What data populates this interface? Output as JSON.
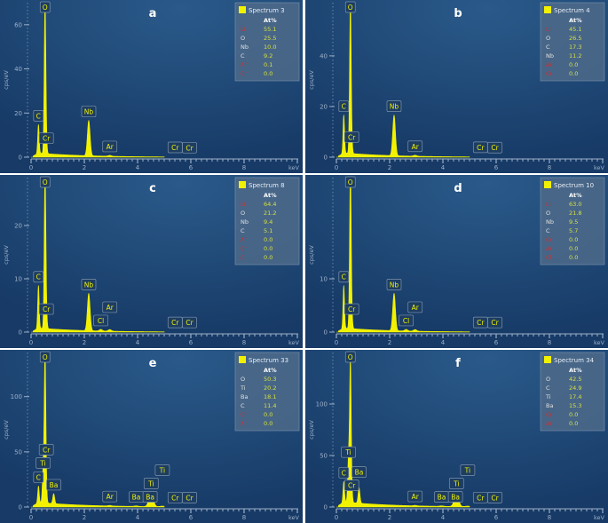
{
  "colors": {
    "spectrum": "#f2f200",
    "background_center": "#2a5a8a",
    "background_edge": "#173a66",
    "legend_value": "#d6e040",
    "legend_element": "#e0e0e0",
    "legend_trace": "#d03030",
    "axis": "#9db0c8"
  },
  "chart_data": [
    {
      "type": "line",
      "panel_letter": "a",
      "ylabel": "cps/eV",
      "xlabel": "keV",
      "xlim": [
        0,
        10
      ],
      "ylim": [
        0,
        70
      ],
      "yticks": [
        0,
        20,
        40,
        60
      ],
      "xticks": [
        0,
        2,
        4,
        6,
        8
      ],
      "background": 2.2,
      "legend": {
        "title": "Spectrum 3",
        "column": "At%",
        "rows": [
          {
            "element": "Li",
            "value": "55.1",
            "trace": true
          },
          {
            "element": "O",
            "value": "25.5"
          },
          {
            "element": "Nb",
            "value": "10.0"
          },
          {
            "element": "C",
            "value": "9.2"
          },
          {
            "element": "Ar",
            "value": "0.1",
            "trace": true
          },
          {
            "element": "Cr",
            "value": "0.0",
            "trace": true
          }
        ]
      },
      "peaks": [
        {
          "label": "C",
          "kev": 0.277,
          "height": 13
        },
        {
          "label": "O",
          "kev": 0.525,
          "height": 68
        },
        {
          "label": "Cr",
          "kev": 0.573,
          "height": 3
        },
        {
          "label": "Nb",
          "kev": 2.166,
          "height": 16
        },
        {
          "label": "Ar",
          "kev": 2.957,
          "height": 0.4
        },
        {
          "label": "Cr",
          "kev": 5.41,
          "height": 0.3
        },
        {
          "label": "Cr",
          "kev": 5.95,
          "height": 0.2
        }
      ]
    },
    {
      "type": "line",
      "panel_letter": "b",
      "ylabel": "cps/eV",
      "xlabel": "keV",
      "xlim": [
        0,
        10
      ],
      "ylim": [
        0,
        61
      ],
      "yticks": [
        0,
        20,
        40
      ],
      "xticks": [
        0,
        2,
        4,
        6,
        8
      ],
      "background": 2.0,
      "legend": {
        "title": "Spectrum 4",
        "column": "At%",
        "rows": [
          {
            "element": "Li",
            "value": "45.1",
            "trace": true
          },
          {
            "element": "O",
            "value": "26.5"
          },
          {
            "element": "C",
            "value": "17.3"
          },
          {
            "element": "Nb",
            "value": "11.2"
          },
          {
            "element": "Ar",
            "value": "0.0",
            "trace": true
          },
          {
            "element": "Cr",
            "value": "0.0",
            "trace": true
          }
        ]
      },
      "peaks": [
        {
          "label": "C",
          "kev": 0.277,
          "height": 15
        },
        {
          "label": "O",
          "kev": 0.525,
          "height": 58
        },
        {
          "label": "Cr",
          "kev": 0.573,
          "height": 3
        },
        {
          "label": "Nb",
          "kev": 2.166,
          "height": 16
        },
        {
          "label": "Ar",
          "kev": 2.957,
          "height": 0.4
        },
        {
          "label": "Cr",
          "kev": 5.41,
          "height": 0.3
        },
        {
          "label": "Cr",
          "kev": 5.95,
          "height": 0.2
        }
      ]
    },
    {
      "type": "line",
      "panel_letter": "c",
      "ylabel": "cps/eV",
      "xlabel": "keV",
      "xlim": [
        0,
        10
      ],
      "ylim": [
        0,
        29
      ],
      "yticks": [
        0,
        10,
        20
      ],
      "xticks": [
        0,
        2,
        4,
        6,
        8
      ],
      "background": 0.9,
      "legend": {
        "title": "Spectrum 8",
        "column": "At%",
        "rows": [
          {
            "element": "Li",
            "value": "64.4",
            "trace": true
          },
          {
            "element": "O",
            "value": "21.2"
          },
          {
            "element": "Nb",
            "value": "9.4"
          },
          {
            "element": "C",
            "value": "5.1"
          },
          {
            "element": "Ar",
            "value": "0.0",
            "trace": true
          },
          {
            "element": "Cr",
            "value": "0.0",
            "trace": true
          },
          {
            "element": "Cl",
            "value": "0.0",
            "trace": true
          }
        ]
      },
      "peaks": [
        {
          "label": "C",
          "kev": 0.277,
          "height": 8
        },
        {
          "label": "O",
          "kev": 0.525,
          "height": 29
        },
        {
          "label": "Cr",
          "kev": 0.573,
          "height": 2
        },
        {
          "label": "Nb",
          "kev": 2.166,
          "height": 7
        },
        {
          "label": "Cl",
          "kev": 2.62,
          "height": 0.3
        },
        {
          "label": "Ar",
          "kev": 2.957,
          "height": 0.3
        },
        {
          "label": "Cr",
          "kev": 5.41,
          "height": 0.1
        },
        {
          "label": "Cr",
          "kev": 5.95,
          "height": 0.1
        }
      ]
    },
    {
      "type": "line",
      "panel_letter": "d",
      "ylabel": "cps/eV",
      "xlabel": "keV",
      "xlim": [
        0,
        10
      ],
      "ylim": [
        0,
        29
      ],
      "yticks": [
        0,
        10
      ],
      "xticks": [
        0,
        2,
        4,
        6,
        8
      ],
      "background": 0.9,
      "legend": {
        "title": "Spectrum 10",
        "column": "At%",
        "rows": [
          {
            "element": "Li",
            "value": "63.0",
            "trace": true
          },
          {
            "element": "O",
            "value": "21.8"
          },
          {
            "element": "Nb",
            "value": "9.5"
          },
          {
            "element": "C",
            "value": "5.7"
          },
          {
            "element": "Cr",
            "value": "0.0",
            "trace": true
          },
          {
            "element": "Ar",
            "value": "0.0",
            "trace": true
          },
          {
            "element": "Cl",
            "value": "0.0",
            "trace": true
          }
        ]
      },
      "peaks": [
        {
          "label": "C",
          "kev": 0.277,
          "height": 8
        },
        {
          "label": "O",
          "kev": 0.525,
          "height": 29
        },
        {
          "label": "Cr",
          "kev": 0.573,
          "height": 2
        },
        {
          "label": "Nb",
          "kev": 2.166,
          "height": 7
        },
        {
          "label": "Cl",
          "kev": 2.62,
          "height": 0.3
        },
        {
          "label": "Ar",
          "kev": 2.957,
          "height": 0.3
        },
        {
          "label": "Cr",
          "kev": 5.41,
          "height": 0.1
        },
        {
          "label": "Cr",
          "kev": 5.95,
          "height": 0.1
        }
      ]
    },
    {
      "type": "line",
      "panel_letter": "e",
      "ylabel": "cps/eV",
      "xlabel": "keV",
      "xlim": [
        0,
        10
      ],
      "ylim": [
        0,
        140
      ],
      "yticks": [
        0,
        50,
        100
      ],
      "xticks": [
        0,
        2,
        4,
        6,
        8
      ],
      "background": 5,
      "legend": {
        "title": "Spectrum 33",
        "column": "At%",
        "rows": [
          {
            "element": "O",
            "value": "50.3"
          },
          {
            "element": "Ti",
            "value": "20.2"
          },
          {
            "element": "Ba",
            "value": "18.1"
          },
          {
            "element": "C",
            "value": "11.4"
          },
          {
            "element": "Cr",
            "value": "0.0",
            "trace": true
          },
          {
            "element": "Ar",
            "value": "0.0",
            "trace": true
          }
        ]
      },
      "peaks": [
        {
          "label": "C",
          "kev": 0.277,
          "height": 15
        },
        {
          "label": "Ti",
          "kev": 0.452,
          "height": 28
        },
        {
          "label": "O",
          "kev": 0.525,
          "height": 135
        },
        {
          "label": "Cr",
          "kev": 0.573,
          "height": 6
        },
        {
          "label": "Ba",
          "kev": 0.85,
          "height": 9
        },
        {
          "label": "Ar",
          "kev": 2.957,
          "height": 0.5
        },
        {
          "label": "Ba",
          "kev": 3.95,
          "height": 0.5
        },
        {
          "label": "Ba",
          "kev": 4.47,
          "height": 0.8
        },
        {
          "label": "Ti",
          "kev": 4.51,
          "height": 12
        },
        {
          "label": "Ti",
          "kev": 4.93,
          "height": 0.5
        },
        {
          "label": "Cr",
          "kev": 5.41,
          "height": 0.3
        },
        {
          "label": "Cr",
          "kev": 5.95,
          "height": 0.3
        }
      ]
    },
    {
      "type": "line",
      "panel_letter": "f",
      "ylabel": "cps/eV",
      "xlabel": "keV",
      "xlim": [
        0,
        10
      ],
      "ylim": [
        0,
        150
      ],
      "yticks": [
        0,
        50,
        100
      ],
      "xticks": [
        0,
        2,
        4,
        6,
        8
      ],
      "background": 6,
      "legend": {
        "title": "Spectrum 34",
        "column": "At%",
        "rows": [
          {
            "element": "O",
            "value": "42.5"
          },
          {
            "element": "C",
            "value": "24.9"
          },
          {
            "element": "Ti",
            "value": "17.4"
          },
          {
            "element": "Ba",
            "value": "15.3"
          },
          {
            "element": "Cr",
            "value": "0.0",
            "trace": true
          },
          {
            "element": "Ar",
            "value": "0.0",
            "trace": true
          }
        ]
      },
      "peaks": [
        {
          "label": "C",
          "kev": 0.277,
          "height": 20
        },
        {
          "label": "Ti",
          "kev": 0.452,
          "height": 40
        },
        {
          "label": "O",
          "kev": 0.525,
          "height": 135
        },
        {
          "label": "Cr",
          "kev": 0.573,
          "height": 8
        },
        {
          "label": "Ba",
          "kev": 0.85,
          "height": 15
        },
        {
          "label": "Ar",
          "kev": 2.957,
          "height": 0.5
        },
        {
          "label": "Ba",
          "kev": 3.95,
          "height": 0.5
        },
        {
          "label": "Ba",
          "kev": 4.47,
          "height": 0.8
        },
        {
          "label": "Ti",
          "kev": 4.51,
          "height": 12
        },
        {
          "label": "Ti",
          "kev": 4.93,
          "height": 0.5
        },
        {
          "label": "Cr",
          "kev": 5.41,
          "height": 0.3
        },
        {
          "label": "Cr",
          "kev": 5.95,
          "height": 0.3
        }
      ]
    }
  ]
}
